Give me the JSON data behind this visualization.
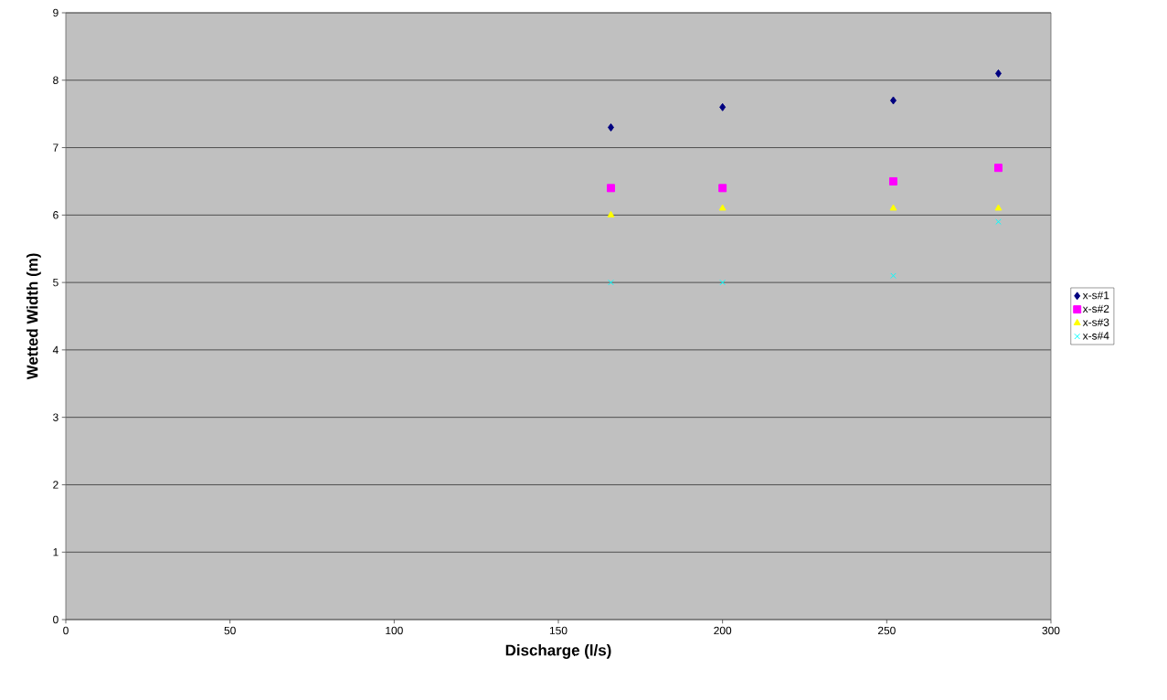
{
  "chart_data": {
    "type": "scatter",
    "xlabel": "Discharge (l/s)",
    "ylabel": "Wetted Width (m)",
    "x": [
      166,
      200,
      252,
      284
    ],
    "series": [
      {
        "name": "x-s#1",
        "color": "#000080",
        "marker": "diamond",
        "values": [
          7.3,
          7.6,
          7.7,
          8.1
        ]
      },
      {
        "name": "x-s#2",
        "color": "#ff00ff",
        "marker": "square",
        "values": [
          6.4,
          6.4,
          6.5,
          6.7
        ]
      },
      {
        "name": "x-s#3",
        "color": "#ffff00",
        "marker": "triangle",
        "values": [
          6.0,
          6.1,
          6.1,
          6.1
        ]
      },
      {
        "name": "x-s#4",
        "color": "#00ffff",
        "marker": "cross",
        "values": [
          5.0,
          5.0,
          5.1,
          5.9
        ]
      }
    ],
    "xlim": [
      0,
      300
    ],
    "xticks": [
      0,
      50,
      100,
      150,
      200,
      250,
      300
    ],
    "ylim": [
      0,
      9
    ],
    "yticks": [
      0,
      1,
      2,
      3,
      4,
      5,
      6,
      7,
      8,
      9
    ],
    "grid": "y",
    "legend": "right"
  }
}
